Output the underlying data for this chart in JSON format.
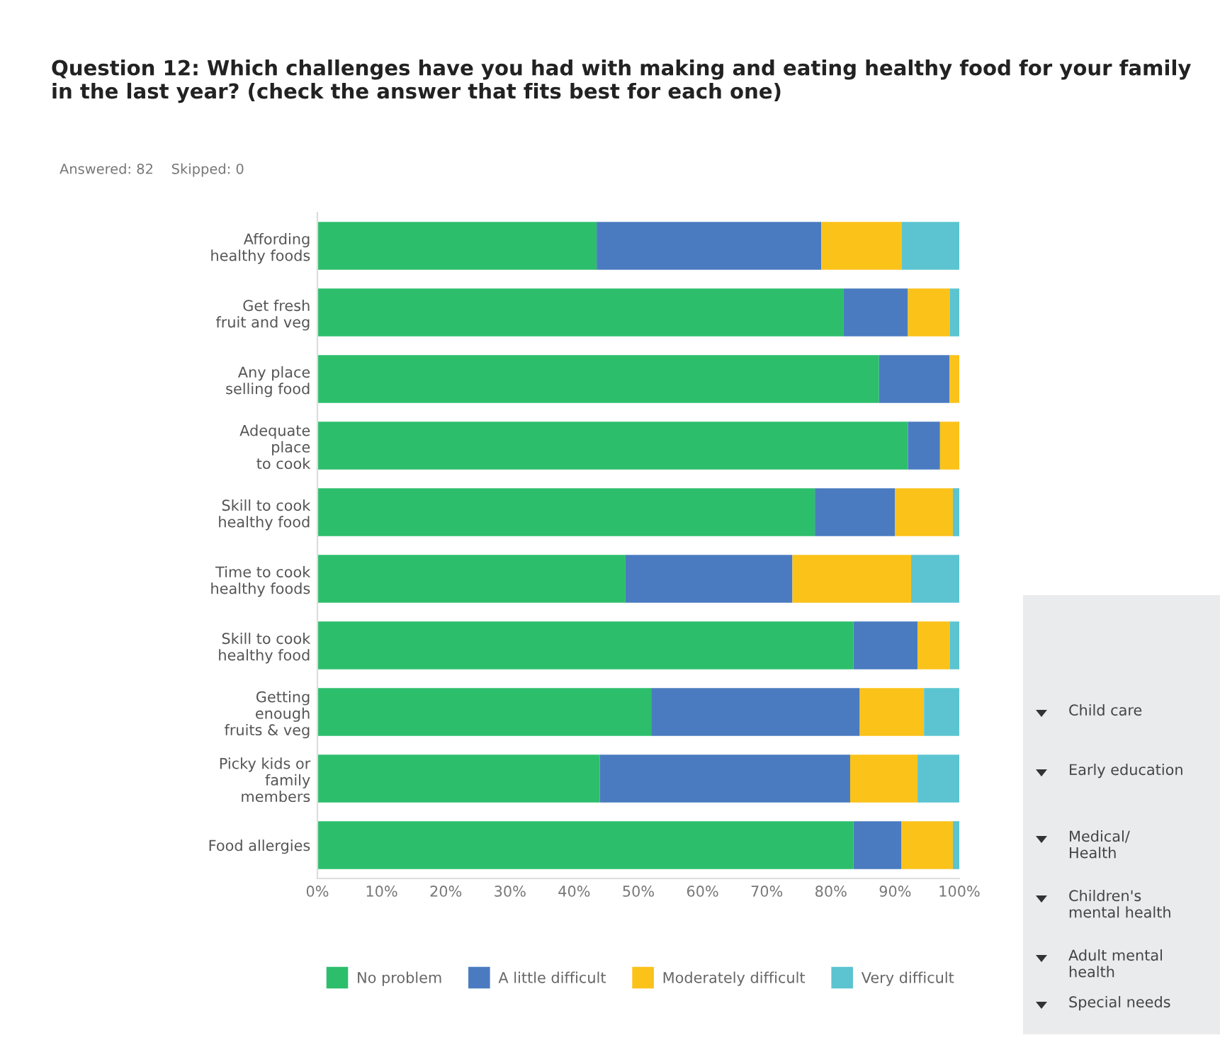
{
  "chart_data": {
    "type": "bar",
    "orientation": "horizontal",
    "stacked": true,
    "title": "Question 12: Which challenges have you had with making and eating healthy food for your family in the last year? (check the answer that fits best for each one)",
    "subtitle": "Answered: 82    Skipped: 0",
    "categories": [
      "Affording\nhealthy foods",
      "Get fresh\nfruit and veg",
      "Any place\nselling food",
      "Adequate\nplace\nto cook",
      "Skill to cook\nhealthy food",
      "Time to cook\nhealthy foods",
      "Skill to cook\nhealthy food",
      "Getting\nenough\nfruits & veg",
      "Picky kids or\nfamily\nmembers",
      "Food allergies"
    ],
    "series": [
      {
        "name": "No problem",
        "color": "#2dbe6c",
        "values": [
          43.5,
          82,
          87.5,
          92,
          77.5,
          48,
          83.5,
          52,
          44,
          83.5
        ]
      },
      {
        "name": "A little difficult",
        "color": "#4a7bc0",
        "values": [
          35,
          10,
          11,
          5,
          12.5,
          26,
          10,
          32.5,
          39,
          7.5
        ]
      },
      {
        "name": "Moderately difficult",
        "color": "#fbc21a",
        "values": [
          12.5,
          6.5,
          1.5,
          3,
          9,
          18.5,
          5,
          10,
          10.5,
          8
        ]
      },
      {
        "name": "Very difficult",
        "color": "#5bc4d0",
        "values": [
          9,
          1.5,
          0,
          0,
          1,
          7.5,
          1.5,
          5.5,
          6.5,
          1
        ]
      }
    ],
    "xlim": [
      0,
      100
    ],
    "xticks": [
      {
        "value": 0,
        "label": "0%"
      },
      {
        "value": 10,
        "label": "10%"
      },
      {
        "value": 20,
        "label": "20%"
      },
      {
        "value": 30,
        "label": "30%"
      },
      {
        "value": 40,
        "label": "40%"
      },
      {
        "value": 50,
        "label": "50%"
      },
      {
        "value": 60,
        "label": "60%"
      },
      {
        "value": 70,
        "label": "70%"
      },
      {
        "value": 80,
        "label": "80%"
      },
      {
        "value": 90,
        "label": "90%"
      },
      {
        "value": 100,
        "label": "100%"
      }
    ],
    "grid": false,
    "legend": "bottom",
    "marker": "square",
    "annotations": [
      "Child care",
      "Early education",
      "Medical/\nHealth",
      "Children's\nmental health",
      "Adult mental\nhealth",
      "Special needs"
    ]
  }
}
